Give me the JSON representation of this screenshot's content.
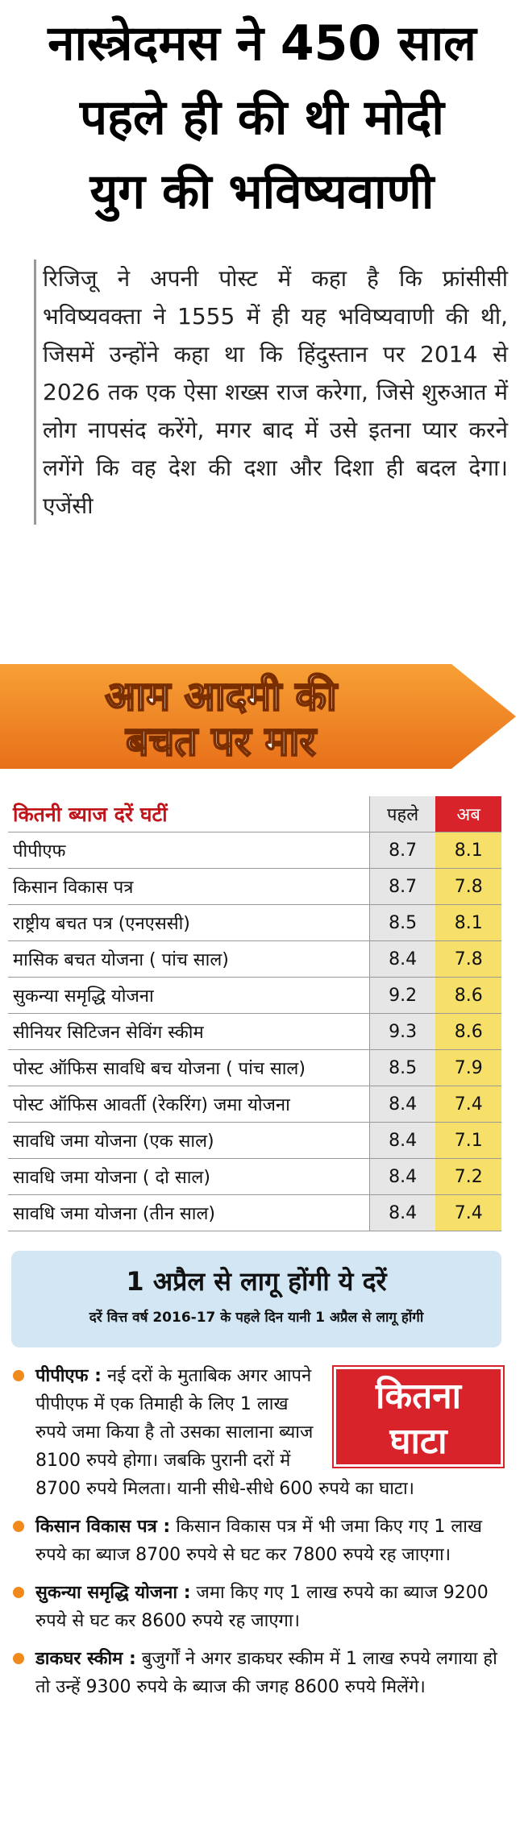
{
  "header": {
    "lines": [
      "नास्त्रेदमस ने 450 साल",
      "पहले ही की थी मोदी",
      "युग की भविष्यवाणी"
    ]
  },
  "intro": {
    "text": "रिजिजू ने अपनी पोस्ट में कहा है कि फ्रांसीसी भविष्यवक्ता ने 1555 में ही यह भविष्यवाणी की थी, जिसमें उन्होंने कहा था कि हिंदुस्तान पर 2014 से 2026 तक एक ऐसा शख्स राज करेगा, जिसे शुरुआत में लोग नापसंद करेंगे, मगर बाद में उसे इतना प्यार करने लगेंगे कि वह देश की दशा और दिशा ही बदल देगा।",
    "source": "एजेंसी"
  },
  "banner": {
    "lines": [
      "आम आदमी की",
      "बचत पर मार"
    ]
  },
  "table": {
    "title": "कितनी ब्याज दरें घटीं",
    "columns": [
      "पहले",
      "अब"
    ],
    "rows": [
      [
        "पीपीएफ",
        "8.7",
        "8.1"
      ],
      [
        "किसान विकास पत्र",
        "8.7",
        "7.8"
      ],
      [
        "राष्ट्रीय बचत पत्र (एनएससी)",
        "8.5",
        "8.1"
      ],
      [
        "मासिक बचत योजना ( पांच साल)",
        "8.4",
        "7.8"
      ],
      [
        "सुकन्या समृद्धि योजना",
        "9.2",
        "8.6"
      ],
      [
        "सीनियर सिटिजन सेविंग स्कीम",
        "9.3",
        "8.6"
      ],
      [
        "पोस्ट ऑफिस सावधि बच योजना ( पांच साल)",
        "8.5",
        "7.9"
      ],
      [
        "पोस्ट ऑफिस आवर्ती (रेकरिंग) जमा योजना",
        "8.4",
        "7.4"
      ],
      [
        "सावधि जमा योजना (एक साल)",
        "8.4",
        "7.1"
      ],
      [
        "सावधि जमा योजना ( दो साल)",
        "8.4",
        "7.2"
      ],
      [
        "सावधि जमा योजना (तीन साल)",
        "8.4",
        "7.4"
      ]
    ]
  },
  "notice": {
    "title": "1 अप्रैल से लागू होंगी ये दरें",
    "subtitle": "दरें वित्त वर्ष 2016-17 के पहले दिन यानी 1 अप्रैल से लागू होंगी"
  },
  "box": {
    "lines": [
      "कितना",
      "घाटा"
    ]
  },
  "bullets": [
    {
      "lead": "पीपीएफ :",
      "text": "नई दरों के मुताबिक अगर आपने पीपीएफ में एक तिमाही के लिए 1 लाख रुपये जमा किया है तो उसका सालाना ब्याज 8100 रुपये होगा। जबकि पुरानी दरों में 8700 रुपये मिलता। यानी सीधे-सीधे 600 रुपये का घाटा।"
    },
    {
      "lead": "किसान विकास पत्र :",
      "text": "किसान विकास पत्र में भी जमा किए गए 1 लाख रुपये का ब्याज 8700 रुपये से घट कर 7800 रुपये रह जाएगा।"
    },
    {
      "lead": "सुकन्या समृद्धि योजना :",
      "text": "जमा किए गए 1 लाख रुपये का ब्याज 9200 रुपये से घट कर 8600 रुपये रह जाएगा।"
    },
    {
      "lead": "डाकघर स्कीम :",
      "text": "बुजुर्गों ने अगर डाकघर स्कीम में 1 लाख रुपये लगाया हो तो उन्हें 9300 रुपये के ब्याज की जगह 8600 रुपये मिलेंगे।"
    }
  ]
}
